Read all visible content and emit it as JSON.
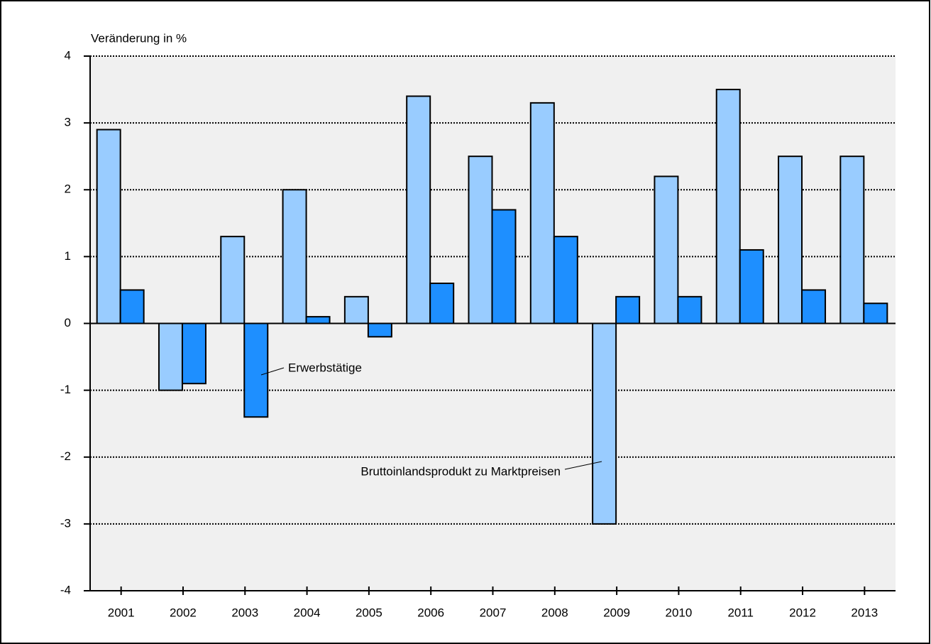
{
  "chart_data": {
    "type": "bar",
    "y_axis_label": "Veränderung in %",
    "categories": [
      "2001",
      "2002",
      "2003",
      "2004",
      "2005",
      "2006",
      "2007",
      "2008",
      "2009",
      "2010",
      "2011",
      "2012",
      "2013"
    ],
    "series": [
      {
        "name": "Bruttoinlandsprodukt zu Marktpreisen",
        "color": "#99ccff",
        "values": [
          2.9,
          -1.0,
          1.3,
          2.0,
          0.4,
          3.4,
          2.5,
          3.3,
          -3.0,
          2.2,
          3.5,
          2.5,
          2.5
        ]
      },
      {
        "name": "Erwerbstätige",
        "color": "#1e8fff",
        "values": [
          0.5,
          -0.9,
          -1.4,
          0.1,
          -0.2,
          0.6,
          1.7,
          1.3,
          0.4,
          0.4,
          1.1,
          0.5,
          0.3
        ]
      }
    ],
    "ylim": [
      -4,
      4
    ],
    "yticks": [
      -4,
      -3,
      -2,
      -1,
      0,
      1,
      2,
      3,
      4
    ],
    "grid": true
  }
}
